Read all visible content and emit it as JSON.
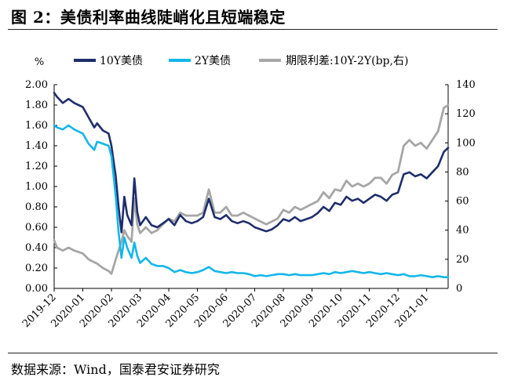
{
  "figure": {
    "title": "图 2：美债利率曲线陡峭化且短端稳定",
    "source": "数据来源：Wind，国泰君安证券研究"
  },
  "chart_data": {
    "type": "line",
    "left_unit": "%",
    "x_ticks": [
      "2019-12",
      "2020-01",
      "2020-02",
      "2020-03",
      "2020-04",
      "2020-05",
      "2020-06",
      "2020-07",
      "2020-08",
      "2020-09",
      "2020-10",
      "2020-11",
      "2020-12",
      "2021-01"
    ],
    "y_left": {
      "min": 0,
      "max": 2.0,
      "ticks": [
        "0.00",
        "0.20",
        "0.40",
        "0.60",
        "0.80",
        "1.00",
        "1.20",
        "1.40",
        "1.60",
        "1.80",
        "2.00"
      ]
    },
    "y_right": {
      "min": 0,
      "max": 140,
      "ticks": [
        "0",
        "20",
        "40",
        "60",
        "80",
        "100",
        "120",
        "140"
      ]
    },
    "x_range_months": [
      0,
      13.75
    ],
    "legend": {
      "placement": "top",
      "entries": [
        "10Y美债",
        "2Y美债",
        "期限利差:10Y-2Y(bp,右)"
      ]
    },
    "colors": {
      "10y": "#1f2d6b",
      "2y": "#13b6ea",
      "spread": "#a6a6a6"
    },
    "series": [
      {
        "name": "10Y美债",
        "axis": "left",
        "x": [
          0,
          0.1,
          0.3,
          0.5,
          0.7,
          1.0,
          1.2,
          1.4,
          1.5,
          1.7,
          1.9,
          2.0,
          2.15,
          2.25,
          2.35,
          2.45,
          2.55,
          2.7,
          2.8,
          2.9,
          3.0,
          3.2,
          3.4,
          3.6,
          3.8,
          4.0,
          4.2,
          4.4,
          4.6,
          4.8,
          5.0,
          5.2,
          5.4,
          5.6,
          5.8,
          6.0,
          6.2,
          6.4,
          6.6,
          6.8,
          7.0,
          7.2,
          7.4,
          7.6,
          7.8,
          8.0,
          8.2,
          8.4,
          8.6,
          8.8,
          9.0,
          9.2,
          9.4,
          9.6,
          9.8,
          10.0,
          10.2,
          10.4,
          10.6,
          10.8,
          11.0,
          11.2,
          11.4,
          11.6,
          11.8,
          12.0,
          12.2,
          12.4,
          12.6,
          12.8,
          13.0,
          13.2,
          13.4,
          13.6,
          13.75
        ],
        "values": [
          1.92,
          1.88,
          1.82,
          1.86,
          1.82,
          1.78,
          1.68,
          1.58,
          1.62,
          1.55,
          1.52,
          1.4,
          1.1,
          0.8,
          0.55,
          0.9,
          0.72,
          0.62,
          1.08,
          0.75,
          0.62,
          0.7,
          0.62,
          0.6,
          0.64,
          0.68,
          0.62,
          0.72,
          0.66,
          0.64,
          0.66,
          0.7,
          0.88,
          0.7,
          0.68,
          0.72,
          0.66,
          0.64,
          0.66,
          0.64,
          0.6,
          0.58,
          0.56,
          0.58,
          0.62,
          0.68,
          0.66,
          0.7,
          0.66,
          0.68,
          0.7,
          0.74,
          0.8,
          0.76,
          0.84,
          0.82,
          0.9,
          0.86,
          0.88,
          0.84,
          0.88,
          0.92,
          0.9,
          0.86,
          0.92,
          0.94,
          1.12,
          1.14,
          1.1,
          1.12,
          1.08,
          1.14,
          1.2,
          1.34,
          1.38
        ]
      },
      {
        "name": "2Y美债",
        "axis": "left",
        "x": [
          0,
          0.1,
          0.3,
          0.5,
          0.7,
          1.0,
          1.2,
          1.4,
          1.5,
          1.7,
          1.9,
          2.0,
          2.15,
          2.25,
          2.35,
          2.45,
          2.55,
          2.7,
          2.8,
          2.9,
          3.0,
          3.2,
          3.4,
          3.6,
          3.8,
          4.0,
          4.2,
          4.4,
          4.6,
          4.8,
          5.0,
          5.2,
          5.4,
          5.6,
          5.8,
          6.0,
          6.2,
          6.4,
          6.6,
          6.8,
          7.0,
          7.2,
          7.4,
          7.6,
          7.8,
          8.0,
          8.2,
          8.4,
          8.6,
          8.8,
          9.0,
          9.2,
          9.4,
          9.6,
          9.8,
          10.0,
          10.2,
          10.4,
          10.6,
          10.8,
          11.0,
          11.2,
          11.4,
          11.6,
          11.8,
          12.0,
          12.2,
          12.4,
          12.6,
          12.8,
          13.0,
          13.2,
          13.4,
          13.6,
          13.75
        ],
        "values": [
          1.6,
          1.58,
          1.56,
          1.6,
          1.56,
          1.52,
          1.42,
          1.36,
          1.44,
          1.42,
          1.4,
          1.3,
          0.9,
          0.55,
          0.3,
          0.5,
          0.4,
          0.3,
          0.45,
          0.32,
          0.25,
          0.3,
          0.24,
          0.22,
          0.22,
          0.2,
          0.16,
          0.18,
          0.16,
          0.15,
          0.16,
          0.18,
          0.21,
          0.17,
          0.16,
          0.15,
          0.16,
          0.15,
          0.15,
          0.14,
          0.12,
          0.13,
          0.12,
          0.13,
          0.14,
          0.14,
          0.13,
          0.14,
          0.13,
          0.13,
          0.13,
          0.14,
          0.15,
          0.14,
          0.16,
          0.15,
          0.16,
          0.17,
          0.16,
          0.15,
          0.16,
          0.15,
          0.14,
          0.15,
          0.14,
          0.13,
          0.14,
          0.12,
          0.12,
          0.13,
          0.12,
          0.11,
          0.12,
          0.11,
          0.11
        ]
      },
      {
        "name": "期限利差:10Y-2Y(bp,右)",
        "axis": "right",
        "x": [
          0,
          0.1,
          0.3,
          0.5,
          0.7,
          1.0,
          1.2,
          1.4,
          1.5,
          1.7,
          1.9,
          2.0,
          2.15,
          2.25,
          2.35,
          2.45,
          2.55,
          2.7,
          2.8,
          2.9,
          3.0,
          3.2,
          3.4,
          3.6,
          3.8,
          4.0,
          4.2,
          4.4,
          4.6,
          4.8,
          5.0,
          5.2,
          5.4,
          5.6,
          5.8,
          6.0,
          6.2,
          6.4,
          6.6,
          6.8,
          7.0,
          7.2,
          7.4,
          7.6,
          7.8,
          8.0,
          8.2,
          8.4,
          8.6,
          8.8,
          9.0,
          9.2,
          9.4,
          9.6,
          9.8,
          10.0,
          10.2,
          10.4,
          10.6,
          10.8,
          11.0,
          11.2,
          11.4,
          11.6,
          11.8,
          12.0,
          12.2,
          12.4,
          12.6,
          12.8,
          13.0,
          13.2,
          13.4,
          13.6,
          13.75
        ],
        "values": [
          33,
          28,
          26,
          28,
          26,
          24,
          20,
          18,
          17,
          14,
          12,
          10,
          20,
          26,
          32,
          40,
          36,
          32,
          62,
          44,
          38,
          42,
          38,
          40,
          44,
          48,
          46,
          52,
          50,
          50,
          50,
          52,
          68,
          52,
          52,
          56,
          50,
          50,
          52,
          50,
          48,
          46,
          44,
          46,
          48,
          54,
          52,
          56,
          54,
          56,
          58,
          60,
          66,
          62,
          68,
          67,
          74,
          70,
          72,
          70,
          72,
          76,
          76,
          72,
          78,
          80,
          98,
          102,
          98,
          100,
          96,
          102,
          108,
          124,
          126
        ]
      }
    ]
  }
}
